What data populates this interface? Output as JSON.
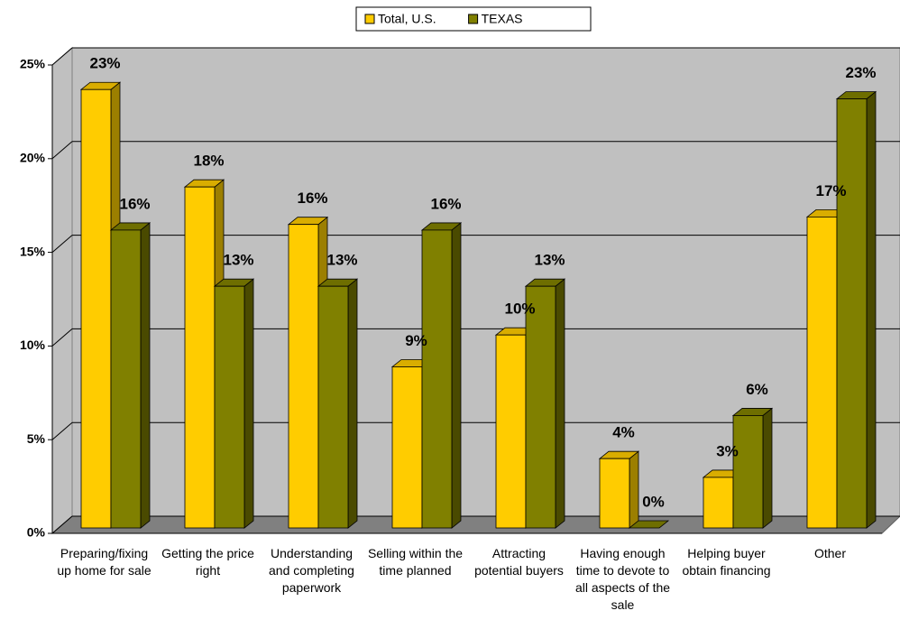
{
  "chart_data": {
    "type": "bar3d",
    "categories": [
      "Preparing/fixing up home for sale",
      "Getting the price right",
      "Understanding and completing paperwork",
      "Selling within the time planned",
      "Attracting potential buyers",
      "Having enough time to devote to all aspects of the sale",
      "Helping buyer obtain financing",
      "Other"
    ],
    "series": [
      {
        "name": "Total, U.S.",
        "color": "#ffcc00",
        "top_color": "#d9ad00",
        "side_color": "#9c7f00",
        "values": [
          23.4,
          18.2,
          16.2,
          8.6,
          10.3,
          3.7,
          2.7,
          16.6
        ],
        "value_labels": [
          "23%",
          "18%",
          "16%",
          "9%",
          "10%",
          "4%",
          "3%",
          "17%"
        ]
      },
      {
        "name": "TEXAS",
        "color": "#808000",
        "top_color": "#6e6e00",
        "side_color": "#4a4a00",
        "values": [
          15.9,
          12.9,
          12.9,
          15.9,
          12.9,
          0,
          6.0,
          22.9
        ],
        "value_labels": [
          "16%",
          "13%",
          "13%",
          "16%",
          "13%",
          "0%",
          "6%",
          "23%"
        ]
      }
    ],
    "ylim": [
      0,
      25
    ],
    "yticks": [
      {
        "value": 0,
        "label": "0%"
      },
      {
        "value": 5,
        "label": "5%"
      },
      {
        "value": 10,
        "label": "10%"
      },
      {
        "value": 15,
        "label": "15%"
      },
      {
        "value": 20,
        "label": "20%"
      },
      {
        "value": 25,
        "label": "25%"
      }
    ],
    "grid": true,
    "legend": "top"
  }
}
